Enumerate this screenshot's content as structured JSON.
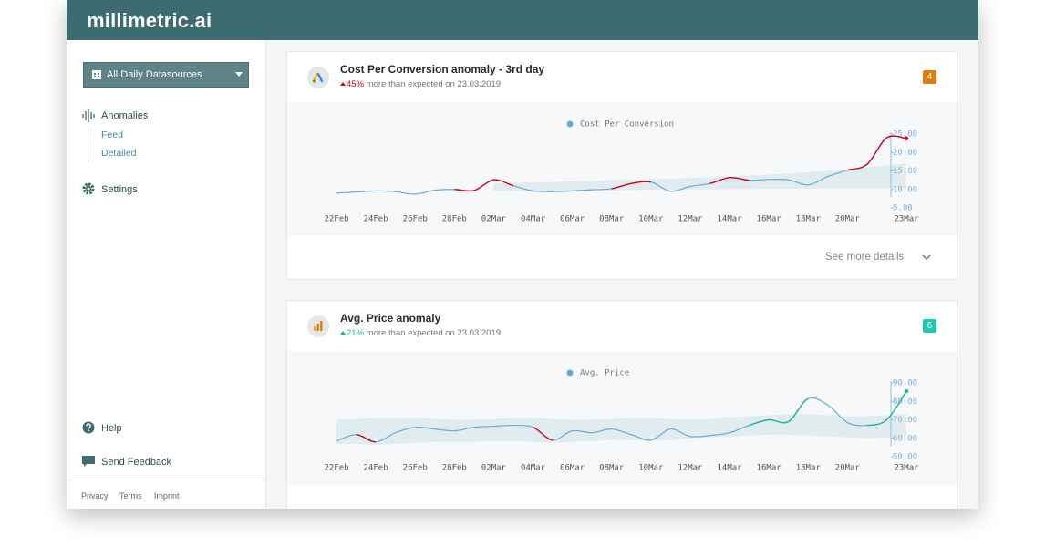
{
  "header": {
    "logo": "millimetric.ai"
  },
  "sidebar": {
    "datasource": "All Daily Datasources",
    "nav": [
      {
        "label": "Anomalies",
        "children": [
          "Feed",
          "Detailed"
        ]
      },
      {
        "label": "Settings"
      }
    ],
    "bottom": [
      "Help",
      "Send Feedback"
    ],
    "footer": [
      "Privacy",
      "Terms",
      "Imprint"
    ]
  },
  "cards": [
    {
      "title": "Cost Per Conversion anomaly - 3rd day",
      "change": "45%",
      "change_text": "more than expected on 23.03.2019",
      "badge": "4",
      "details": "See more details"
    },
    {
      "title": "Avg. Price anomaly",
      "change": "21%",
      "change_text": "more than expected on 23.03.2019",
      "badge": "6"
    }
  ],
  "chart_data": [
    {
      "type": "line",
      "categories": [
        "22Feb",
        null,
        "24Feb",
        null,
        "26Feb",
        null,
        "28Feb",
        null,
        "02Mar",
        null,
        "04Mar",
        null,
        "06Mar",
        null,
        "08Mar",
        null,
        "10Mar",
        null,
        "12Mar",
        null,
        "14Mar",
        null,
        "16Mar",
        null,
        "18Mar",
        null,
        "20Mar",
        null,
        null,
        "23Mar"
      ],
      "series": [
        {
          "name": "Cost Per Conversion",
          "color": "#6aaad4",
          "values": [
            9,
            9.3,
            9.6,
            9.4,
            8.7,
            9.8,
            10,
            9.7,
            12.6,
            11,
            9.6,
            9.4,
            9.6,
            9.9,
            10.2,
            11.6,
            12,
            9.5,
            10.8,
            11.6,
            13.2,
            12.5,
            12.7,
            12.6,
            11.2,
            13.5,
            15.2,
            16.8,
            24,
            23.8
          ]
        }
      ],
      "band": {
        "color": "#dce8ef",
        "lower": [
          null,
          null,
          null,
          null,
          null,
          null,
          null,
          null,
          9.6,
          9.5,
          9.4,
          9.4,
          9.5,
          9.6,
          9.7,
          9.8,
          9.9,
          10,
          10,
          10,
          10.1,
          10.1,
          10.2,
          10.2,
          10.2,
          10.3,
          10.3,
          10.3,
          10.4,
          10.4
        ],
        "upper": [
          null,
          null,
          null,
          null,
          null,
          null,
          null,
          null,
          11.6,
          11.8,
          11.9,
          12,
          12.2,
          12.3,
          12.5,
          12.6,
          12.8,
          13,
          13.1,
          13.3,
          13.5,
          13.8,
          14,
          14.3,
          14.7,
          15,
          15.5,
          16,
          16.5,
          17
        ]
      },
      "highlights": [
        {
          "range": [
            6,
            9
          ],
          "color": "#d0021b"
        },
        {
          "range": [
            14,
            16
          ],
          "color": "#d0021b"
        },
        {
          "range": [
            19,
            21
          ],
          "color": "#d0021b"
        },
        {
          "range": [
            26,
            29
          ],
          "color": "#d0021b"
        }
      ],
      "ylim": [
        5,
        25
      ],
      "yticks": [
        {
          "value": 5,
          "label": "5.00"
        },
        {
          "value": 10,
          "label": "10.00"
        },
        {
          "value": 15,
          "label": "15.00"
        },
        {
          "value": 20,
          "label": "20.00"
        },
        {
          "value": 25,
          "label": "25.00"
        }
      ]
    },
    {
      "type": "line",
      "categories": [
        "22Feb",
        null,
        "24Feb",
        null,
        "26Feb",
        null,
        "28Feb",
        null,
        "02Mar",
        null,
        "04Mar",
        null,
        "06Mar",
        null,
        "08Mar",
        null,
        "10Mar",
        null,
        "12Mar",
        null,
        "14Mar",
        null,
        "16Mar",
        null,
        "18Mar",
        null,
        "20Mar",
        null,
        null,
        "23Mar"
      ],
      "series": [
        {
          "name": "Avg. Price",
          "color": "#6aaad4",
          "values": [
            58.5,
            62,
            58,
            63,
            66,
            65,
            64,
            66,
            66.5,
            67,
            66,
            59,
            64,
            63,
            65,
            62,
            59,
            65,
            61,
            61.5,
            63,
            67,
            70,
            69,
            81.5,
            78,
            68.5,
            67,
            70,
            85.5
          ]
        }
      ],
      "band": {
        "color": "#dce8ef",
        "lower": [
          57,
          57,
          56.5,
          57,
          57.5,
          58,
          58,
          58,
          58.5,
          58.5,
          58,
          57.5,
          58,
          58.5,
          59,
          59,
          58.5,
          59,
          60,
          60.5,
          61,
          61.5,
          62,
          62,
          61.5,
          61,
          60.5,
          60,
          60.5,
          61
        ],
        "upper": [
          70,
          70.5,
          71,
          71,
          71,
          70.5,
          70,
          70,
          70.5,
          71,
          71,
          70.5,
          70,
          70,
          70.5,
          71,
          71,
          70.5,
          70,
          70.5,
          71.5,
          72,
          72.5,
          73,
          73,
          72.5,
          72,
          72,
          72.5,
          73
        ]
      },
      "highlights": [
        {
          "range": [
            1,
            2
          ],
          "color": "#d0021b"
        },
        {
          "range": [
            10,
            11
          ],
          "color": "#d0021b"
        },
        {
          "range": [
            21,
            24
          ],
          "color": "#1ab99a"
        },
        {
          "range": [
            27,
            29
          ],
          "color": "#1ab99a"
        }
      ],
      "ylim": [
        50,
        90
      ],
      "yticks": [
        {
          "value": 50,
          "label": "50.00"
        },
        {
          "value": 60,
          "label": "60.00"
        },
        {
          "value": 70,
          "label": "70.00"
        },
        {
          "value": 80,
          "label": "80.00"
        },
        {
          "value": 90,
          "label": "90.00"
        }
      ]
    }
  ]
}
